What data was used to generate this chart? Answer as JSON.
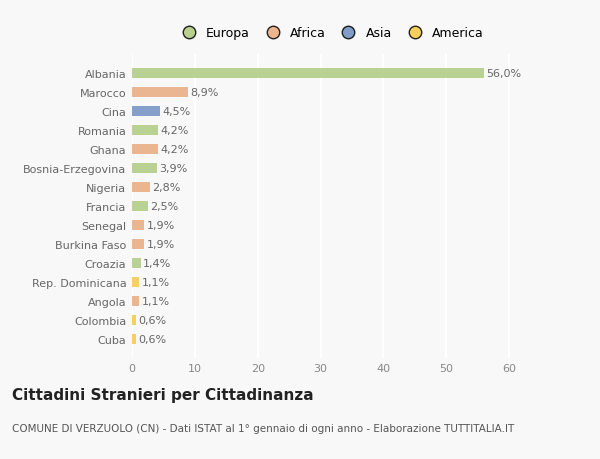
{
  "categories": [
    "Albania",
    "Marocco",
    "Cina",
    "Romania",
    "Ghana",
    "Bosnia-Erzegovina",
    "Nigeria",
    "Francia",
    "Senegal",
    "Burkina Faso",
    "Croazia",
    "Rep. Dominicana",
    "Angola",
    "Colombia",
    "Cuba"
  ],
  "values": [
    56.0,
    8.9,
    4.5,
    4.2,
    4.2,
    3.9,
    2.8,
    2.5,
    1.9,
    1.9,
    1.4,
    1.1,
    1.1,
    0.6,
    0.6
  ],
  "labels": [
    "56,0%",
    "8,9%",
    "4,5%",
    "4,2%",
    "4,2%",
    "3,9%",
    "2,8%",
    "2,5%",
    "1,9%",
    "1,9%",
    "1,4%",
    "1,1%",
    "1,1%",
    "0,6%",
    "0,6%"
  ],
  "continents": [
    "Europa",
    "Africa",
    "Asia",
    "Europa",
    "Africa",
    "Europa",
    "Africa",
    "Europa",
    "Africa",
    "Africa",
    "Europa",
    "America",
    "Africa",
    "America",
    "America"
  ],
  "continent_colors": {
    "Europa": "#adc97e",
    "Africa": "#e8a87c",
    "Asia": "#6b8cbf",
    "America": "#f5c842"
  },
  "legend_items": [
    "Europa",
    "Africa",
    "Asia",
    "America"
  ],
  "legend_colors": [
    "#adc97e",
    "#e8a87c",
    "#6b8cbf",
    "#f5c842"
  ],
  "xlim": [
    0,
    63
  ],
  "xticks": [
    0,
    10,
    20,
    30,
    40,
    50,
    60
  ],
  "title": "Cittadini Stranieri per Cittadinanza",
  "subtitle": "COMUNE DI VERZUOLO (CN) - Dati ISTAT al 1° gennaio di ogni anno - Elaborazione TUTTITALIA.IT",
  "background_color": "#f8f8f8",
  "plot_bg_color": "#f8f8f8",
  "bar_height": 0.55,
  "grid_color": "#ffffff",
  "title_fontsize": 11,
  "subtitle_fontsize": 7.5,
  "label_fontsize": 8,
  "tick_fontsize": 8,
  "legend_fontsize": 9
}
